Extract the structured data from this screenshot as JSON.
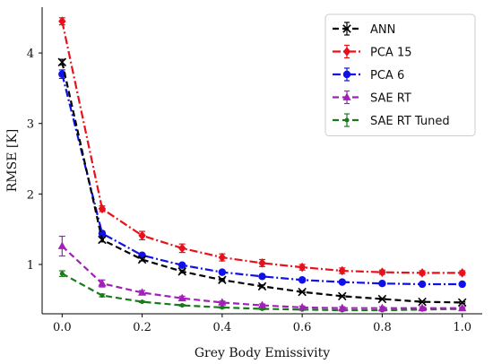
{
  "chart_data": {
    "type": "line",
    "title": "",
    "xlabel": "Grey Body Emissivity",
    "ylabel": "RMSE [K]",
    "xlim": [
      -0.05,
      1.05
    ],
    "ylim": [
      0.3,
      4.65
    ],
    "x": [
      0.0,
      0.1,
      0.2,
      0.3,
      0.4,
      0.5,
      0.6,
      0.7,
      0.8,
      0.9,
      1.0
    ],
    "x_ticks": [
      0.0,
      0.2,
      0.4,
      0.6,
      0.8,
      1.0
    ],
    "x_tick_labels": [
      "0.0",
      "0.2",
      "0.4",
      "0.6",
      "0.8",
      "1.0"
    ],
    "y_ticks": [
      1,
      2,
      3,
      4
    ],
    "y_tick_labels": [
      "1",
      "2",
      "3",
      "4"
    ],
    "grid": false,
    "legend_position": "top-right",
    "series": [
      {
        "name": "ANN",
        "color": "#000000",
        "marker": "x",
        "dash": "dashed",
        "values": [
          3.87,
          1.35,
          1.07,
          0.9,
          0.78,
          0.69,
          0.61,
          0.55,
          0.51,
          0.47,
          0.46
        ],
        "errors": [
          0.04,
          0.03,
          0.02,
          0.02,
          0.02,
          0.02,
          0.01,
          0.01,
          0.01,
          0.01,
          0.01
        ]
      },
      {
        "name": "PCA 15",
        "color": "#e8101a",
        "marker": "diamond",
        "dash": "dashdot",
        "values": [
          4.45,
          1.79,
          1.41,
          1.23,
          1.1,
          1.02,
          0.96,
          0.91,
          0.89,
          0.88,
          0.88
        ],
        "errors": [
          0.05,
          0.04,
          0.06,
          0.06,
          0.05,
          0.05,
          0.04,
          0.04,
          0.03,
          0.03,
          0.03
        ]
      },
      {
        "name": "PCA 6",
        "color": "#1010e8",
        "marker": "circle",
        "dash": "dashdot",
        "values": [
          3.7,
          1.44,
          1.13,
          0.99,
          0.89,
          0.83,
          0.78,
          0.75,
          0.73,
          0.72,
          0.72
        ],
        "errors": [
          0.06,
          0.03,
          0.02,
          0.02,
          0.02,
          0.02,
          0.02,
          0.02,
          0.02,
          0.02,
          0.02
        ]
      },
      {
        "name": "SAE RT",
        "color": "#a020b8",
        "marker": "triangle",
        "dash": "dashed",
        "values": [
          1.26,
          0.73,
          0.6,
          0.52,
          0.46,
          0.42,
          0.39,
          0.38,
          0.38,
          0.38,
          0.38
        ],
        "errors": [
          0.14,
          0.05,
          0.03,
          0.03,
          0.02,
          0.02,
          0.02,
          0.02,
          0.02,
          0.02,
          0.02
        ]
      },
      {
        "name": "SAE RT Tuned",
        "color": "#1a7a1a",
        "marker": "point",
        "dash": "dashed",
        "values": [
          0.87,
          0.56,
          0.47,
          0.42,
          0.39,
          0.37,
          0.36,
          0.35,
          0.35,
          0.36,
          0.37
        ],
        "errors": [
          0.04,
          0.02,
          0.01,
          0.01,
          0.01,
          0.01,
          0.01,
          0.01,
          0.01,
          0.01,
          0.01
        ]
      }
    ]
  }
}
